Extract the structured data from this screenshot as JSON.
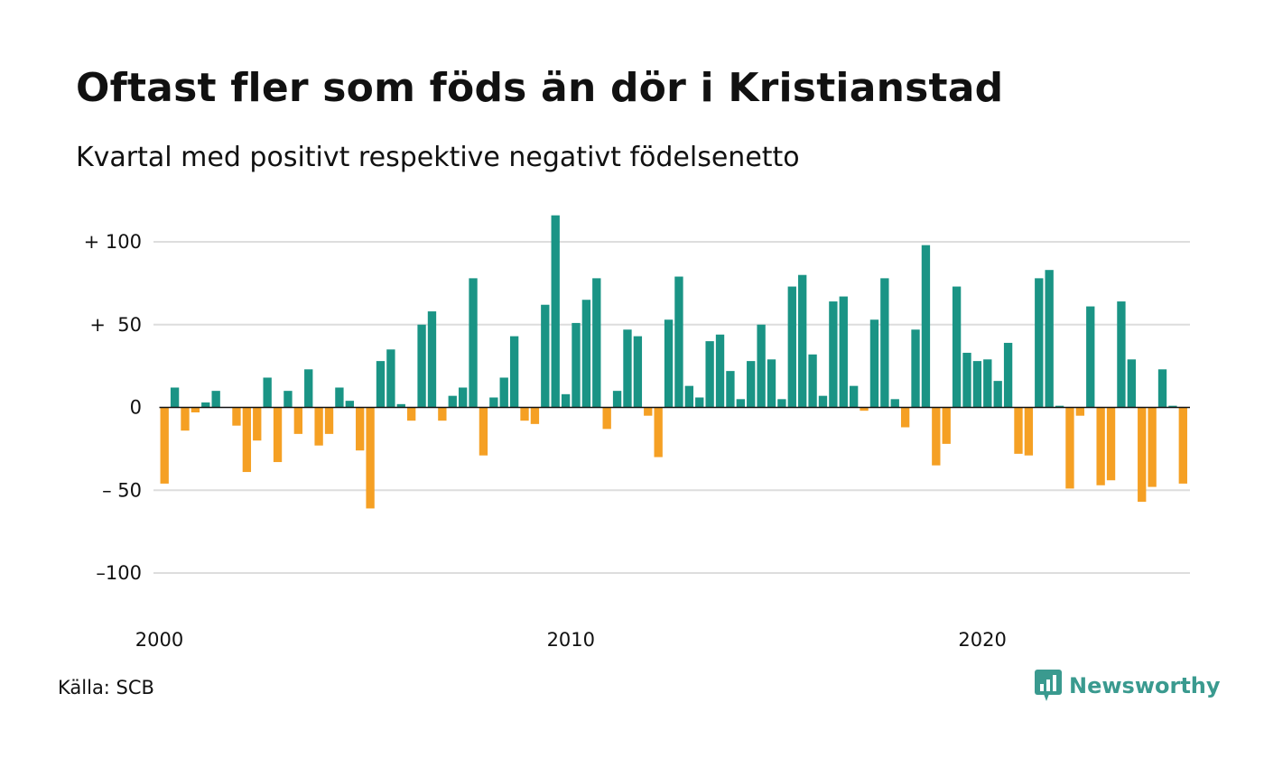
{
  "title": "Oftast fler som föds än dör i Kristianstad",
  "subtitle": "Kvartal med positivt respektive negativt födelsenetto",
  "source": "Källa: SCB",
  "brand": {
    "name": "Newsworthy",
    "icon": "newsworthy-logo-icon",
    "color": "#3a9a8f"
  },
  "colors": {
    "positive": "#1a9485",
    "negative": "#f5a024",
    "grid": "#dddddd",
    "zero": "#111111"
  },
  "chart_data": {
    "type": "bar",
    "xlabel": "",
    "ylabel": "",
    "ylim": [
      -120,
      125
    ],
    "yticks": [
      {
        "value": 100,
        "label": "+ 100"
      },
      {
        "value": 50,
        "label": "+  50"
      },
      {
        "value": 0,
        "label": "0"
      },
      {
        "value": -50,
        "label": "– 50"
      },
      {
        "value": -100,
        "label": "–100"
      }
    ],
    "xticks": [
      {
        "value": 2000,
        "label": "2000"
      },
      {
        "value": 2010,
        "label": "2010"
      },
      {
        "value": 2020,
        "label": "2020"
      }
    ],
    "grid": true,
    "x_start_quarter": "2000 Q1",
    "values": [
      -46,
      12,
      -14,
      -3,
      3,
      10,
      0,
      -11,
      -39,
      -20,
      18,
      -33,
      10,
      -16,
      23,
      -23,
      -16,
      12,
      4,
      -26,
      -61,
      28,
      35,
      2,
      -8,
      50,
      58,
      -8,
      7,
      12,
      78,
      -29,
      6,
      18,
      43,
      -8,
      -10,
      62,
      116,
      8,
      51,
      65,
      78,
      -13,
      10,
      47,
      43,
      -5,
      -30,
      53,
      79,
      13,
      6,
      40,
      44,
      22,
      5,
      28,
      50,
      29,
      5,
      73,
      80,
      32,
      7,
      64,
      67,
      13,
      -2,
      53,
      78,
      5,
      -12,
      47,
      98,
      -35,
      -22,
      73,
      33,
      28,
      29,
      16,
      39,
      -28,
      -29,
      78,
      83,
      1,
      -49,
      -5,
      61,
      -47,
      -44,
      64,
      29,
      -57,
      -48,
      23,
      1,
      -46
    ]
  }
}
